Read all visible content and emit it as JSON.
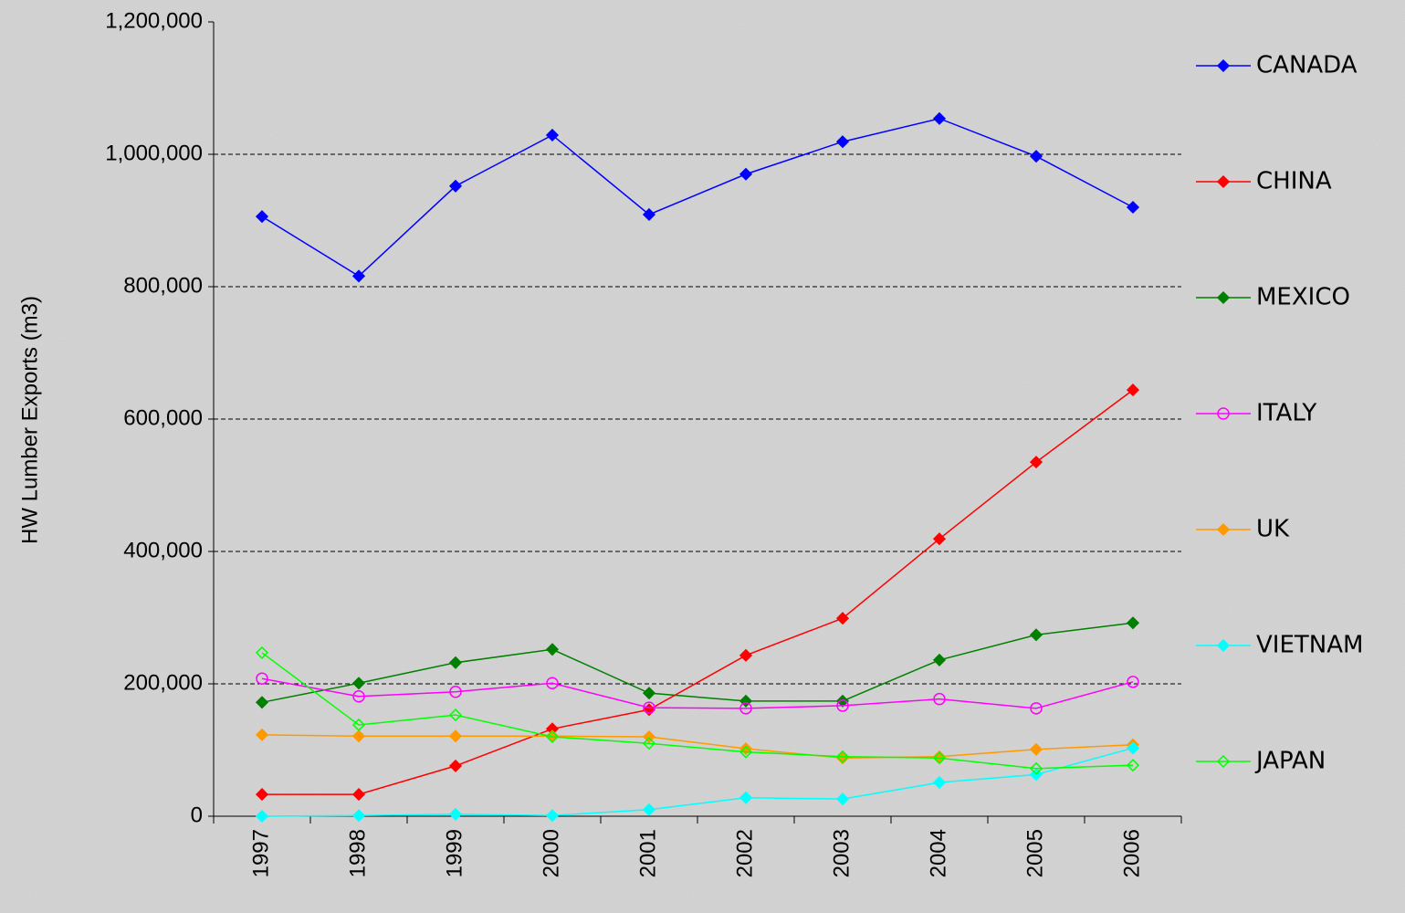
{
  "chart_data": {
    "type": "line",
    "y_label": "HW Lumber Exports (m3)",
    "categories": [
      "1997",
      "1998",
      "1999",
      "2000",
      "2001",
      "2002",
      "2003",
      "2004",
      "2005",
      "2006"
    ],
    "series": [
      {
        "name": "CANADA",
        "color": "#0000ff",
        "marker": "diamond",
        "filled": true,
        "values": [
          906000,
          816000,
          952000,
          1029000,
          909000,
          970000,
          1019000,
          1054000,
          997000,
          920000
        ]
      },
      {
        "name": "CHINA",
        "color": "#ff0000",
        "marker": "diamond",
        "filled": true,
        "values": [
          33000,
          33000,
          76000,
          132000,
          161000,
          243000,
          299000,
          419000,
          535000,
          644000
        ]
      },
      {
        "name": "MEXICO",
        "color": "#008000",
        "marker": "diamond",
        "filled": true,
        "values": [
          172000,
          201000,
          232000,
          252000,
          186000,
          174000,
          174000,
          236000,
          274000,
          292000
        ]
      },
      {
        "name": "ITALY",
        "color": "#ff00ff",
        "marker": "circle",
        "filled": false,
        "values": [
          208000,
          181000,
          188000,
          201000,
          164000,
          163000,
          167000,
          177000,
          163000,
          203000
        ]
      },
      {
        "name": "UK",
        "color": "#ff9900",
        "marker": "diamond",
        "filled": true,
        "values": [
          123000,
          121000,
          121000,
          121000,
          120000,
          102000,
          88000,
          90000,
          101000,
          108000
        ]
      },
      {
        "name": "VIETNAM",
        "color": "#00ffff",
        "marker": "diamond",
        "filled": true,
        "values": [
          0,
          1000,
          3000,
          1000,
          10000,
          28000,
          26000,
          51000,
          63000,
          103000
        ]
      },
      {
        "name": "JAPAN",
        "color": "#00ff00",
        "marker": "diamond",
        "filled": false,
        "values": [
          247000,
          138000,
          153000,
          120000,
          110000,
          97000,
          90000,
          88000,
          72000,
          77000
        ]
      }
    ],
    "ylim": [
      0,
      1200000
    ],
    "yticks": [
      {
        "value": 0,
        "label": "0"
      },
      {
        "value": 200000,
        "label": "200,000"
      },
      {
        "value": 400000,
        "label": "400,000"
      },
      {
        "value": 600000,
        "label": "600,000"
      },
      {
        "value": 800000,
        "label": "800,000"
      },
      {
        "value": 1000000,
        "label": "1,000,000"
      },
      {
        "value": 1200000,
        "label": "1,200,000"
      }
    ],
    "grid": true,
    "legend": "right"
  }
}
